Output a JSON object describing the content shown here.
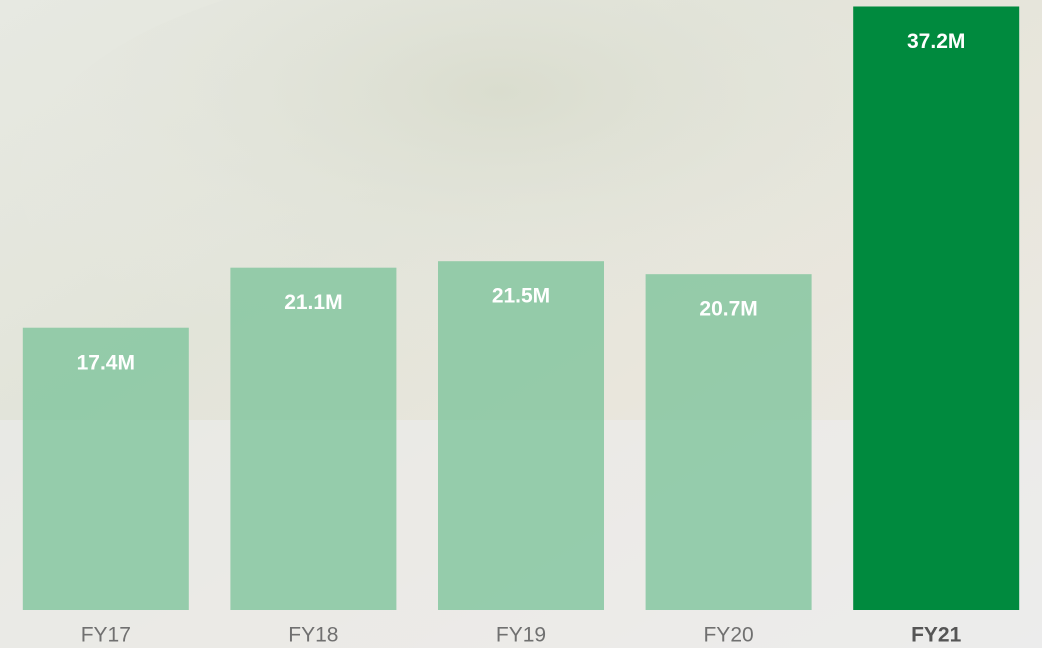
{
  "chart_data": {
    "type": "bar",
    "categories": [
      "FY17",
      "FY18",
      "FY19",
      "FY20",
      "FY21"
    ],
    "values": [
      17.4,
      21.1,
      21.5,
      20.7,
      37.2
    ],
    "value_labels": [
      "17.4M",
      "21.1M",
      "21.5M",
      "20.7M",
      "37.2M"
    ],
    "colors": [
      "#80c49c",
      "#80c49c",
      "#80c49c",
      "#80c49c",
      "#008a3e"
    ],
    "highlight": 4,
    "ylim": [
      0,
      37.6
    ]
  }
}
